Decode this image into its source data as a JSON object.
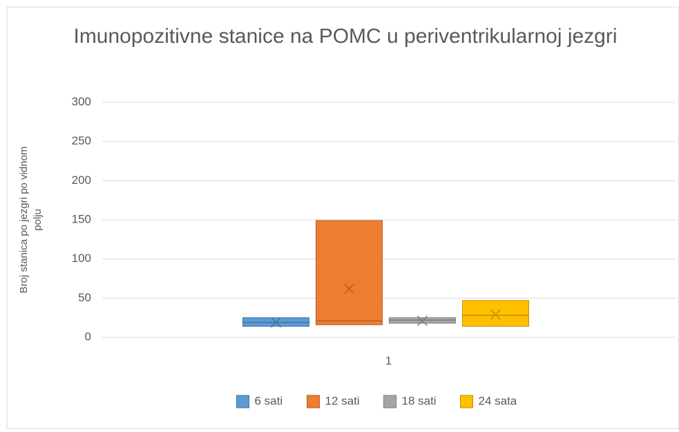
{
  "chart_data": {
    "type": "box",
    "title": "Imunopozitivne stanice na POMC u periventrikularnoj jezgri",
    "y_label": "Broj stanica po jezgri po vidnom polju",
    "categories": [
      "1"
    ],
    "ylim": [
      0,
      300
    ],
    "yticks": [
      0,
      50,
      100,
      150,
      200,
      250,
      300
    ],
    "grid": true,
    "legend": "bottom",
    "series": [
      {
        "name": "6 sati",
        "color": "#5b9bd5",
        "q1": 14,
        "median": 19,
        "q3": 25,
        "mean": 19
      },
      {
        "name": "12 sati",
        "color": "#ed7d31",
        "q1": 16,
        "median": 21,
        "q3": 149,
        "mean": 62
      },
      {
        "name": "18 sati",
        "color": "#a5a5a5",
        "q1": 18,
        "median": 22,
        "q3": 25,
        "mean": 21
      },
      {
        "name": "24 sata",
        "color": "#ffc000",
        "q1": 14,
        "median": 28,
        "q3": 47,
        "mean": 29
      }
    ]
  }
}
